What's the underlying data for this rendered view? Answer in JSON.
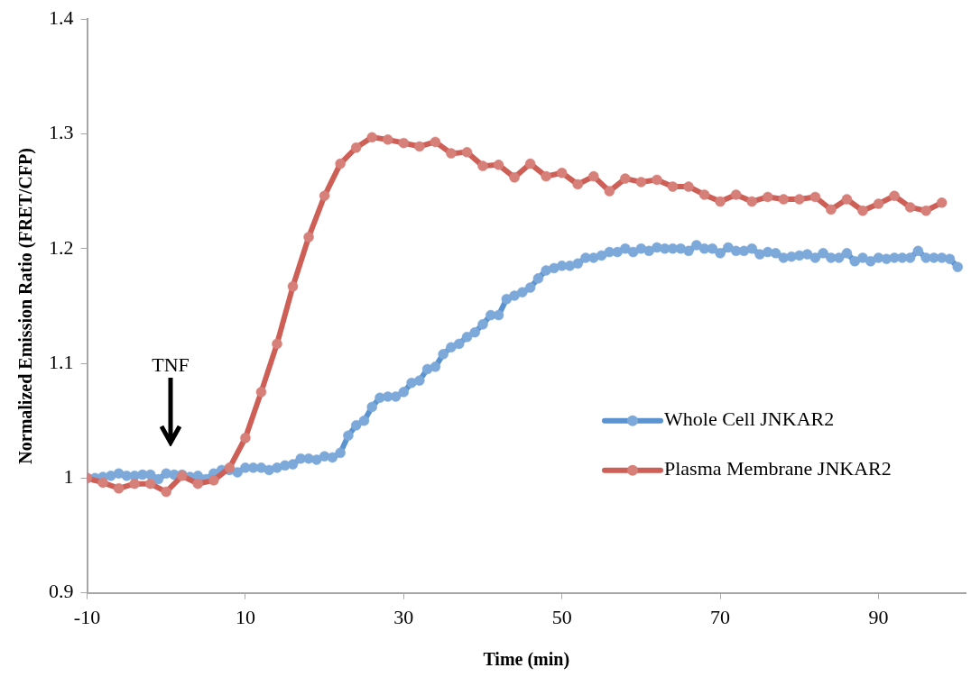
{
  "chart_data": {
    "type": "line",
    "xlabel": "Time (min)",
    "ylabel": "Normalized Emission Ratio (FRET/CFP)",
    "xlim": [
      -10,
      101
    ],
    "xticks": [
      -10,
      10,
      30,
      50,
      70,
      90
    ],
    "ylim": [
      0.9,
      1.4
    ],
    "yticks": [
      0.9,
      1,
      1.1,
      1.2,
      1.3,
      1.4
    ],
    "grid": false,
    "legend": "right",
    "marker": "circle",
    "line_style": "solid",
    "annotations": [
      "TNF"
    ],
    "series": [
      {
        "name": "Whole Cell JNKAR2",
        "color": "#5b93d0",
        "x": [
          -10,
          -9,
          -8,
          -7,
          -6,
          -5,
          -4,
          -3,
          -2,
          -1,
          0,
          1,
          2,
          3,
          4,
          5,
          6,
          7,
          8,
          9,
          10,
          11,
          12,
          13,
          14,
          15,
          16,
          17,
          18,
          19,
          20,
          21,
          22,
          23,
          24,
          25,
          26,
          27,
          28,
          29,
          30,
          31,
          32,
          33,
          34,
          35,
          36,
          37,
          38,
          39,
          40,
          41,
          42,
          43,
          44,
          45,
          46,
          47,
          48,
          49,
          50,
          51,
          52,
          53,
          54,
          55,
          56,
          57,
          58,
          59,
          60,
          61,
          62,
          63,
          64,
          65,
          66,
          67,
          68,
          69,
          70,
          71,
          72,
          73,
          74,
          75,
          76,
          77,
          78,
          79,
          80,
          81,
          82,
          83,
          84,
          85,
          86,
          87,
          88,
          89,
          90,
          91,
          92,
          93,
          94,
          95,
          96,
          97,
          98,
          99,
          100
        ],
        "values": [
          1.0,
          1.0,
          1.001,
          1.002,
          1.004,
          1.002,
          1.002,
          1.003,
          1.003,
          0.999,
          1.004,
          1.003,
          1.003,
          1.001,
          1.002,
          0.999,
          1.004,
          1.007,
          1.007,
          1.005,
          1.009,
          1.009,
          1.009,
          1.007,
          1.009,
          1.011,
          1.012,
          1.017,
          1.017,
          1.016,
          1.019,
          1.018,
          1.022,
          1.037,
          1.046,
          1.05,
          1.062,
          1.07,
          1.071,
          1.071,
          1.075,
          1.083,
          1.085,
          1.095,
          1.097,
          1.108,
          1.114,
          1.117,
          1.123,
          1.127,
          1.134,
          1.142,
          1.142,
          1.156,
          1.159,
          1.162,
          1.166,
          1.174,
          1.181,
          1.183,
          1.185,
          1.185,
          1.187,
          1.192,
          1.192,
          1.194,
          1.197,
          1.197,
          1.2,
          1.197,
          1.2,
          1.198,
          1.201,
          1.2,
          1.2,
          1.2,
          1.198,
          1.203,
          1.2,
          1.2,
          1.196,
          1.201,
          1.198,
          1.198,
          1.2,
          1.195,
          1.197,
          1.196,
          1.192,
          1.193,
          1.194,
          1.195,
          1.192,
          1.196,
          1.192,
          1.192,
          1.196,
          1.189,
          1.192,
          1.189,
          1.192,
          1.191,
          1.192,
          1.192,
          1.192,
          1.198,
          1.192,
          1.192,
          1.192,
          1.191,
          1.184
        ]
      },
      {
        "name": "Plasma Membrane JNKAR2",
        "color": "#cd5f57",
        "x": [
          -10,
          -8,
          -6,
          -4,
          -2,
          0,
          2,
          4,
          6,
          8,
          10,
          12,
          14,
          16,
          18,
          20,
          22,
          24,
          26,
          28,
          30,
          32,
          34,
          36,
          38,
          40,
          42,
          44,
          46,
          48,
          50,
          52,
          54,
          56,
          58,
          60,
          62,
          64,
          66,
          68,
          70,
          72,
          74,
          76,
          78,
          80,
          82,
          84,
          86,
          88,
          90,
          92,
          94,
          96,
          98
        ],
        "values": [
          1.0,
          0.996,
          0.991,
          0.995,
          0.995,
          0.988,
          1.002,
          0.995,
          0.998,
          1.009,
          1.035,
          1.075,
          1.117,
          1.167,
          1.21,
          1.246,
          1.274,
          1.288,
          1.297,
          1.295,
          1.292,
          1.289,
          1.293,
          1.283,
          1.284,
          1.272,
          1.273,
          1.262,
          1.274,
          1.263,
          1.266,
          1.256,
          1.263,
          1.25,
          1.261,
          1.258,
          1.26,
          1.254,
          1.254,
          1.247,
          1.241,
          1.247,
          1.241,
          1.245,
          1.243,
          1.243,
          1.245,
          1.234,
          1.243,
          1.233,
          1.239,
          1.246,
          1.236,
          1.233,
          1.24
        ]
      }
    ]
  }
}
